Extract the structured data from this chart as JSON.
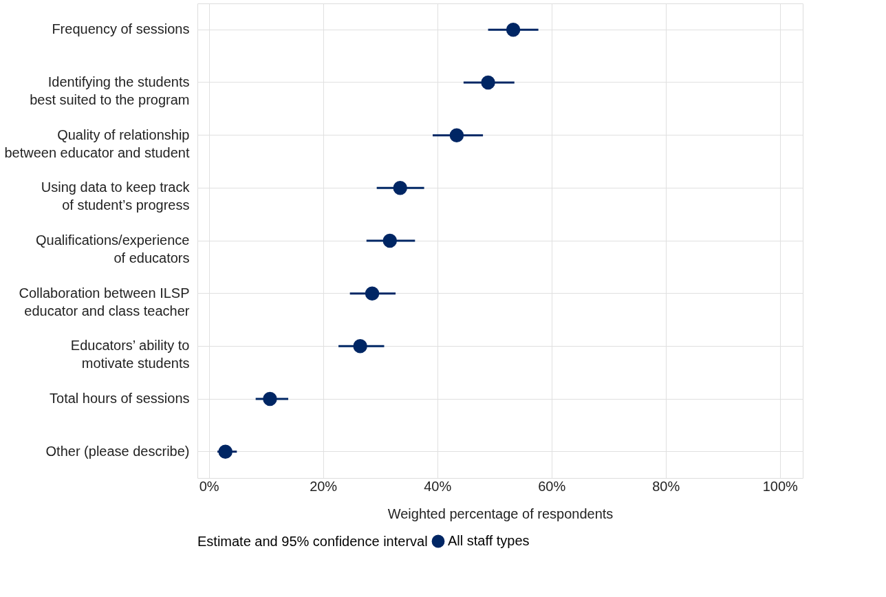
{
  "chart_data": {
    "type": "scatter",
    "orientation": "horizontal",
    "categories": [
      "Frequency of sessions",
      "Identifying the students\nbest suited to the program",
      "Quality of relationship\nbetween educator and student",
      "Using data to keep track\nof student’s progress",
      "Qualifications/experience\nof educators",
      "Collaboration between ILSP\neducator and class teacher",
      "Educators’ ability to\nmotivate students",
      "Total hours of sessions",
      "Other (please describe)"
    ],
    "series": [
      {
        "name": "All staff types",
        "color": "#002664",
        "values": [
          53.3,
          48.9,
          43.4,
          33.5,
          31.7,
          28.6,
          26.5,
          10.7,
          2.9
        ],
        "errors": [
          [
            48.9,
            57.7
          ],
          [
            44.6,
            53.5
          ],
          [
            39.2,
            48.0
          ],
          [
            29.4,
            37.7
          ],
          [
            27.6,
            36.1
          ],
          [
            24.7,
            32.7
          ],
          [
            22.7,
            30.7
          ],
          [
            8.2,
            13.9
          ],
          [
            1.5,
            4.9
          ]
        ]
      }
    ],
    "xlabel": "Weighted percentage of respondents",
    "legend_title": "Estimate and 95% confidence interval",
    "legend": "bottom",
    "grid": true,
    "marker": "circle",
    "xlim": [
      -2,
      104
    ],
    "xticks": [
      {
        "value": 0,
        "label": "0%"
      },
      {
        "value": 20,
        "label": "20%"
      },
      {
        "value": 40,
        "label": "40%"
      },
      {
        "value": 60,
        "label": "60%"
      },
      {
        "value": 80,
        "label": "80%"
      },
      {
        "value": 100,
        "label": "100%"
      }
    ]
  }
}
